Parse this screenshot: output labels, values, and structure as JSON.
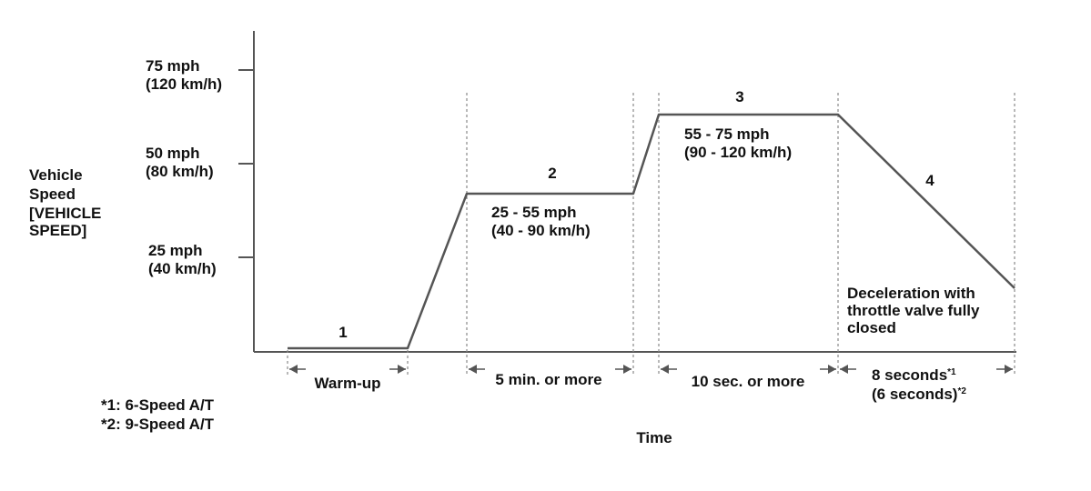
{
  "y_axis": {
    "label_lines": [
      "Vehicle",
      "Speed",
      "[VEHICLE",
      "SPEED]"
    ],
    "ticks": [
      {
        "line1": "75 mph",
        "line2": "(120 km/h)"
      },
      {
        "line1": "50 mph",
        "line2": "(80 km/h)"
      },
      {
        "line1": "25 mph",
        "line2": "(40 km/h)"
      }
    ]
  },
  "x_axis": {
    "label": "Time"
  },
  "phases": [
    {
      "number": "1",
      "duration": "Warm-up"
    },
    {
      "number": "2",
      "speed_line1": "25 - 55 mph",
      "speed_line2": "(40 - 90 km/h)",
      "duration": "5 min. or more"
    },
    {
      "number": "3",
      "speed_line1": "55 - 75 mph",
      "speed_line2": "(90 - 120 km/h)",
      "duration": "10 sec. or more"
    },
    {
      "number": "4",
      "note_lines": [
        "Deceleration with",
        "throttle valve fully",
        "closed"
      ],
      "duration_line1": "8 seconds",
      "sup1": "*1",
      "duration_line2": "(6 seconds)",
      "sup2": "*2"
    }
  ],
  "footnotes": [
    "*1: 6-Speed A/T",
    "*2: 9-Speed A/T"
  ],
  "colors": {
    "line": "#555555",
    "text": "#111111",
    "guide": "#888888"
  }
}
